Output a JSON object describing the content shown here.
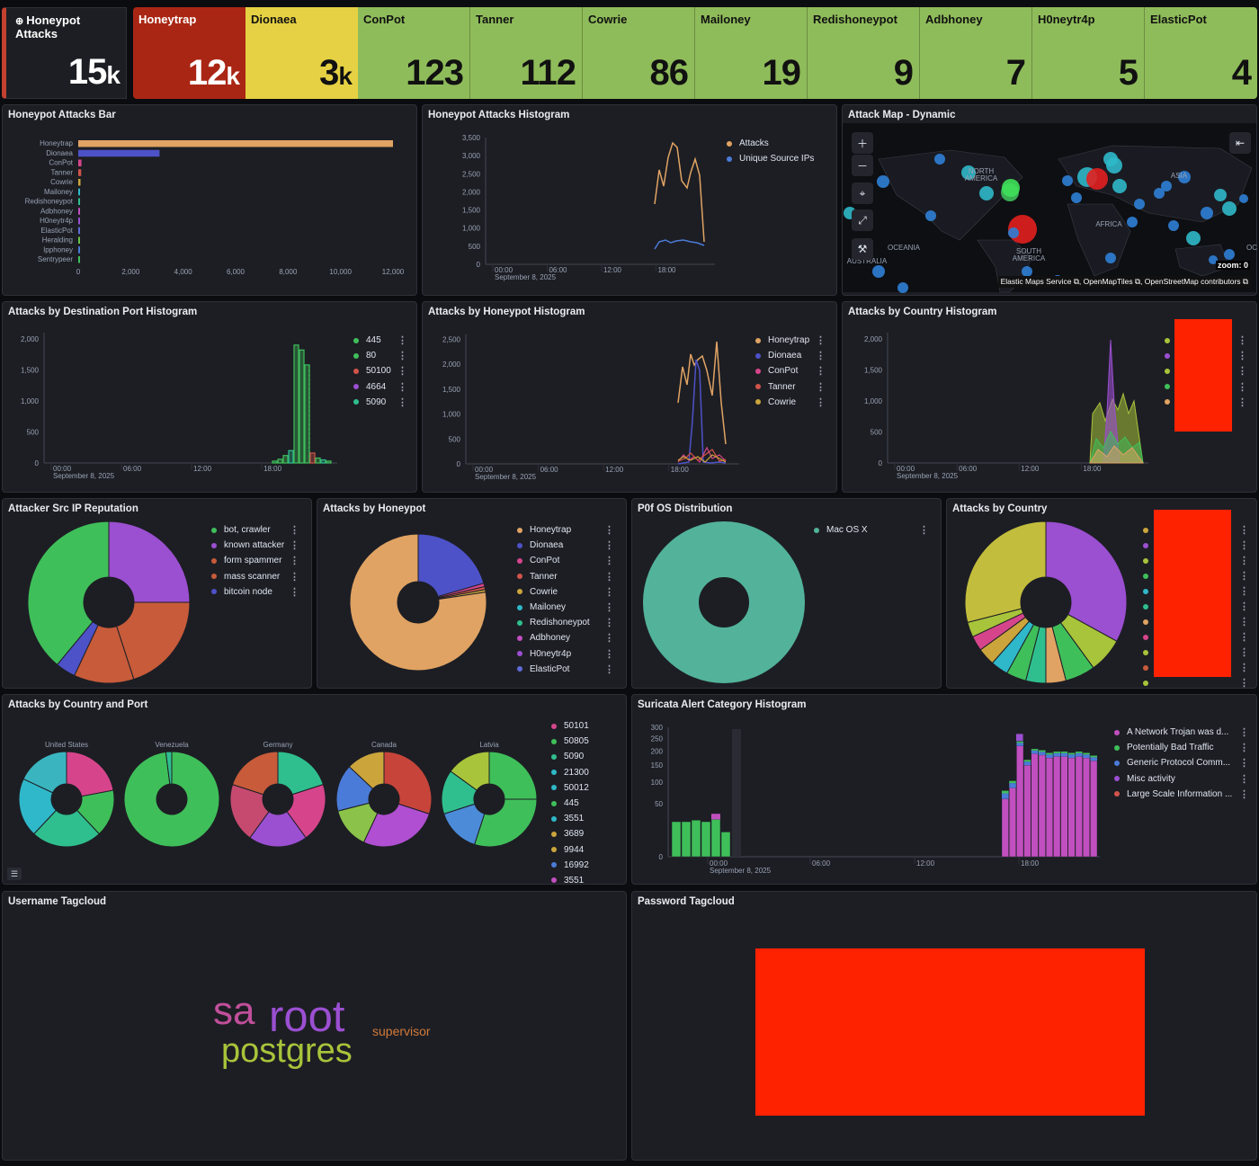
{
  "metrics": [
    {
      "label": "Honeypot Attacks",
      "value": "15",
      "suffix": "k",
      "color": "#1d1e24",
      "text": "#ffffff",
      "icon": "globe-icon"
    },
    {
      "label": "Honeytrap",
      "value": "12",
      "suffix": "k",
      "color": "#aa2614",
      "text": "#ffffff"
    },
    {
      "label": "Dionaea",
      "value": "3",
      "suffix": "k",
      "color": "#e5d143",
      "text": "#111111"
    },
    {
      "label": "ConPot",
      "value": "123",
      "suffix": "",
      "color": "#8fbc5a",
      "text": "#111111"
    },
    {
      "label": "Tanner",
      "value": "112",
      "suffix": "",
      "color": "#8fbc5a",
      "text": "#111111"
    },
    {
      "label": "Cowrie",
      "value": "86",
      "suffix": "",
      "color": "#8fbc5a",
      "text": "#111111"
    },
    {
      "label": "Mailoney",
      "value": "19",
      "suffix": "",
      "color": "#8fbc5a",
      "text": "#111111"
    },
    {
      "label": "Redishoneypot",
      "value": "9",
      "suffix": "",
      "color": "#8fbc5a",
      "text": "#111111"
    },
    {
      "label": "Adbhoney",
      "value": "7",
      "suffix": "",
      "color": "#8fbc5a",
      "text": "#111111"
    },
    {
      "label": "H0neytr4p",
      "value": "5",
      "suffix": "",
      "color": "#8fbc5a",
      "text": "#111111"
    },
    {
      "label": "ElasticPot",
      "value": "4",
      "suffix": "",
      "color": "#8fbc5a",
      "text": "#111111"
    }
  ],
  "panels": {
    "bar": "Honeypot Attacks Bar",
    "hist": "Honeypot Attacks Histogram",
    "map": "Attack Map - Dynamic",
    "port_hist": "Attacks by Destination Port Histogram",
    "hp_hist": "Attacks by Honeypot Histogram",
    "country_hist": "Attacks by Country Histogram",
    "reputation": "Attacker Src IP Reputation",
    "by_honeypot": "Attacks by Honeypot",
    "p0f": "P0f OS Distribution",
    "by_country": "Attacks by Country",
    "country_port": "Attacks by Country and Port",
    "suricata": "Suricata Alert Category Histogram",
    "user_tag": "Username Tagcloud",
    "pass_tag": "Password Tagcloud"
  },
  "bar_chart": {
    "type": "bar",
    "categories": [
      "Honeytrap",
      "Dionaea",
      "ConPot",
      "Tanner",
      "Cowrie",
      "Mailoney",
      "Redishoneypot",
      "Adbhoney",
      "H0neytr4p",
      "ElasticPot",
      "Heralding",
      "Ipphoney",
      "Sentrypeer"
    ],
    "values": [
      12000,
      3100,
      123,
      112,
      86,
      19,
      9,
      7,
      5,
      4,
      3,
      2,
      1
    ],
    "colors": [
      "#e0a363",
      "#4d52c8",
      "#d6458c",
      "#d1544a",
      "#cba53c",
      "#2fb8c9",
      "#2fbf8e",
      "#c14fbf",
      "#9b4fd1",
      "#5f6bd6",
      "#66c447",
      "#4b7bd8",
      "#3fbf5a"
    ],
    "ticks": [
      "0",
      "2,000",
      "4,000",
      "6,000",
      "8,000",
      "10,000",
      "12,000"
    ],
    "xlim": [
      0,
      12000
    ]
  },
  "hist": {
    "yticks": [
      "3,500",
      "3,000",
      "2,500",
      "2,000",
      "1,500",
      "1,000",
      "500",
      "0"
    ],
    "xticks": [
      "00:00",
      "06:00",
      "12:00",
      "18:00"
    ],
    "date": "September 8, 2025",
    "legend": [
      {
        "name": "Attacks",
        "color": "#e0a363"
      },
      {
        "name": "Unique Source IPs",
        "color": "#4b7bd8"
      }
    ]
  },
  "map": {
    "labels": {
      "na": "NORTH\nAMERICA",
      "asia": "ASIA",
      "africa": "AFRICA",
      "sa": "SOUTH\nAMERICA",
      "oceania": "OCEANIA",
      "australia": "AUSTRALIA",
      "oc": "OC"
    },
    "zoom": "zoom: 0",
    "attribution": [
      "Elastic Maps Service",
      "OpenMapTiles",
      "OpenStreetMap contributors"
    ]
  },
  "port_hist": {
    "yticks": [
      "2,000",
      "1,500",
      "1,000",
      "500",
      "0"
    ],
    "xticks": [
      "00:00",
      "06:00",
      "12:00",
      "18:00"
    ],
    "date": "September 8, 2025",
    "legend": [
      {
        "name": "445",
        "color": "#3fbf5a"
      },
      {
        "name": "80",
        "color": "#3fbf5a"
      },
      {
        "name": "50100",
        "color": "#d1544a"
      },
      {
        "name": "4664",
        "color": "#9b4fd1"
      },
      {
        "name": "5090",
        "color": "#2fbf8e"
      }
    ]
  },
  "hp_hist": {
    "yticks": [
      "2,500",
      "2,000",
      "1,500",
      "1,000",
      "500",
      "0"
    ],
    "xticks": [
      "00:00",
      "06:00",
      "12:00",
      "18:00"
    ],
    "date": "September 8, 2025",
    "legend": [
      {
        "name": "Honeytrap",
        "color": "#e0a363"
      },
      {
        "name": "Dionaea",
        "color": "#4d52c8"
      },
      {
        "name": "ConPot",
        "color": "#d6458c"
      },
      {
        "name": "Tanner",
        "color": "#d1544a"
      },
      {
        "name": "Cowrie",
        "color": "#cba53c"
      }
    ]
  },
  "country_hist": {
    "yticks": [
      "2,000",
      "1,500",
      "1,000",
      "500",
      "0"
    ],
    "xticks": [
      "00:00",
      "06:00",
      "12:00",
      "18:00"
    ],
    "date": "September 8, 2025",
    "legend_colors": [
      "#a8c43a",
      "#9b4fd1",
      "#a8c43a",
      "#3fbf5a",
      "#e0a363"
    ]
  },
  "reputation": {
    "legend": [
      {
        "name": "bot, crawler",
        "color": "#3fbf5a"
      },
      {
        "name": "known attacker",
        "color": "#9b4fd1"
      },
      {
        "name": "form spammer",
        "color": "#c75b3a"
      },
      {
        "name": "mass scanner",
        "color": "#c75b3a"
      },
      {
        "name": "bitcoin node",
        "color": "#4d52c8"
      }
    ],
    "slices": [
      {
        "value": 25,
        "color": "#9b4fd1"
      },
      {
        "value": 20,
        "color": "#c75b3a"
      },
      {
        "value": 12,
        "color": "#c75b3a"
      },
      {
        "value": 4,
        "color": "#4d52c8"
      },
      {
        "value": 39,
        "color": "#3fbf5a"
      }
    ]
  },
  "by_honeypot": {
    "legend": [
      {
        "name": "Honeytrap",
        "color": "#e0a363"
      },
      {
        "name": "Dionaea",
        "color": "#4d52c8"
      },
      {
        "name": "ConPot",
        "color": "#d6458c"
      },
      {
        "name": "Tanner",
        "color": "#d1544a"
      },
      {
        "name": "Cowrie",
        "color": "#cba53c"
      },
      {
        "name": "Mailoney",
        "color": "#2fb8c9"
      },
      {
        "name": "Redishoneypot",
        "color": "#2fbf8e"
      },
      {
        "name": "Adbhoney",
        "color": "#c14fbf"
      },
      {
        "name": "H0neytr4p",
        "color": "#9b4fd1"
      },
      {
        "name": "ElasticPot",
        "color": "#5f6bd6"
      }
    ],
    "slices": [
      {
        "value": 20.5,
        "color": "#4d52c8"
      },
      {
        "value": 0.8,
        "color": "#d6458c"
      },
      {
        "value": 0.7,
        "color": "#d1544a"
      },
      {
        "value": 0.6,
        "color": "#cba53c"
      },
      {
        "value": 77.4,
        "color": "#e0a363"
      }
    ]
  },
  "p0f": {
    "legend": [
      {
        "name": "Mac OS X",
        "color": "#52b39a"
      }
    ],
    "slices": [
      {
        "value": 100,
        "color": "#52b39a"
      }
    ]
  },
  "by_country": {
    "legend_colors": [
      "#cba53c",
      "#9b4fd1",
      "#a8c43a",
      "#3fbf5a",
      "#2fb8c9",
      "#2fbf8e",
      "#e0a363",
      "#d6458c",
      "#a8c43a",
      "#c75b3a",
      "#a8c43a"
    ],
    "slices": [
      {
        "value": 33,
        "color": "#9b4fd1"
      },
      {
        "value": 7,
        "color": "#a8c43a"
      },
      {
        "value": 6,
        "color": "#3fbf5a"
      },
      {
        "value": 4,
        "color": "#e0a363"
      },
      {
        "value": 4,
        "color": "#2fbf8e"
      },
      {
        "value": 4,
        "color": "#3fbf5a"
      },
      {
        "value": 3.5,
        "color": "#2fb8c9"
      },
      {
        "value": 3.5,
        "color": "#cba53c"
      },
      {
        "value": 3,
        "color": "#d6458c"
      },
      {
        "value": 3,
        "color": "#a8c43a"
      },
      {
        "value": 29,
        "color": "#c3bd3d"
      }
    ]
  },
  "country_port": {
    "countries": [
      {
        "name": "United States",
        "slices": [
          {
            "value": 22,
            "color": "#d6458c"
          },
          {
            "value": 16,
            "color": "#3fbf5a"
          },
          {
            "value": 24,
            "color": "#2fbf8e"
          },
          {
            "value": 20,
            "color": "#2fb8c9"
          },
          {
            "value": 18,
            "color": "#3ab5c0"
          }
        ]
      },
      {
        "name": "Venezuela",
        "slices": [
          {
            "value": 98,
            "color": "#3fbf5a"
          },
          {
            "value": 2,
            "color": "#2fbf8e"
          }
        ]
      },
      {
        "name": "Germany",
        "slices": [
          {
            "value": 20,
            "color": "#2fbf8e"
          },
          {
            "value": 20,
            "color": "#d6458c"
          },
          {
            "value": 20,
            "color": "#9b4fd1"
          },
          {
            "value": 20,
            "color": "#c64a70"
          },
          {
            "value": 20,
            "color": "#c75b3a"
          }
        ]
      },
      {
        "name": "Canada",
        "slices": [
          {
            "value": 30,
            "color": "#c7443a"
          },
          {
            "value": 27,
            "color": "#b04fd1"
          },
          {
            "value": 14,
            "color": "#8bc34a"
          },
          {
            "value": 16,
            "color": "#4b7bd8"
          },
          {
            "value": 13,
            "color": "#cba53c"
          }
        ]
      },
      {
        "name": "Latvia",
        "slices": [
          {
            "value": 25,
            "color": "#3fbf5a"
          },
          {
            "value": 30,
            "color": "#3fbf5a"
          },
          {
            "value": 15,
            "color": "#4b8bd8"
          },
          {
            "value": 15,
            "color": "#2fbf8e"
          },
          {
            "value": 15,
            "color": "#a8c43a"
          }
        ]
      }
    ],
    "legend": [
      {
        "name": "50101",
        "color": "#d6458c"
      },
      {
        "name": "50805",
        "color": "#3fbf5a"
      },
      {
        "name": "5090",
        "color": "#2fbf8e"
      },
      {
        "name": "21300",
        "color": "#2fb8c9"
      },
      {
        "name": "50012",
        "color": "#2fb8c9"
      },
      {
        "name": "445",
        "color": "#3fbf5a"
      },
      {
        "name": "3551",
        "color": "#2fb8c9"
      },
      {
        "name": "3689",
        "color": "#cba53c"
      },
      {
        "name": "9944",
        "color": "#cba53c"
      },
      {
        "name": "16992",
        "color": "#4b7bd8"
      },
      {
        "name": "3551",
        "color": "#c14fbf"
      }
    ]
  },
  "suricata": {
    "yticks": [
      "300",
      "250",
      "200",
      "150",
      "100",
      "50",
      "0"
    ],
    "xticks": [
      "00:00",
      "06:00",
      "12:00",
      "18:00"
    ],
    "date": "September 8, 2025",
    "legend": [
      {
        "name": "A Network Trojan was d...",
        "color": "#c14fbf"
      },
      {
        "name": "Potentially Bad Traffic",
        "color": "#3fbf5a"
      },
      {
        "name": "Generic Protocol Comm...",
        "color": "#4b7bd8"
      },
      {
        "name": "Misc activity",
        "color": "#9b4fd1"
      },
      {
        "name": "Large Scale Information ...",
        "color": "#d1544a"
      }
    ]
  },
  "user_tags": [
    {
      "word": "sa",
      "color": "#c14f9b"
    },
    {
      "word": "root",
      "color": "#9b4fd1"
    },
    {
      "word": "supervisor",
      "color": "#d17a3a"
    },
    {
      "word": "postgres",
      "color": "#a8c43a"
    }
  ]
}
